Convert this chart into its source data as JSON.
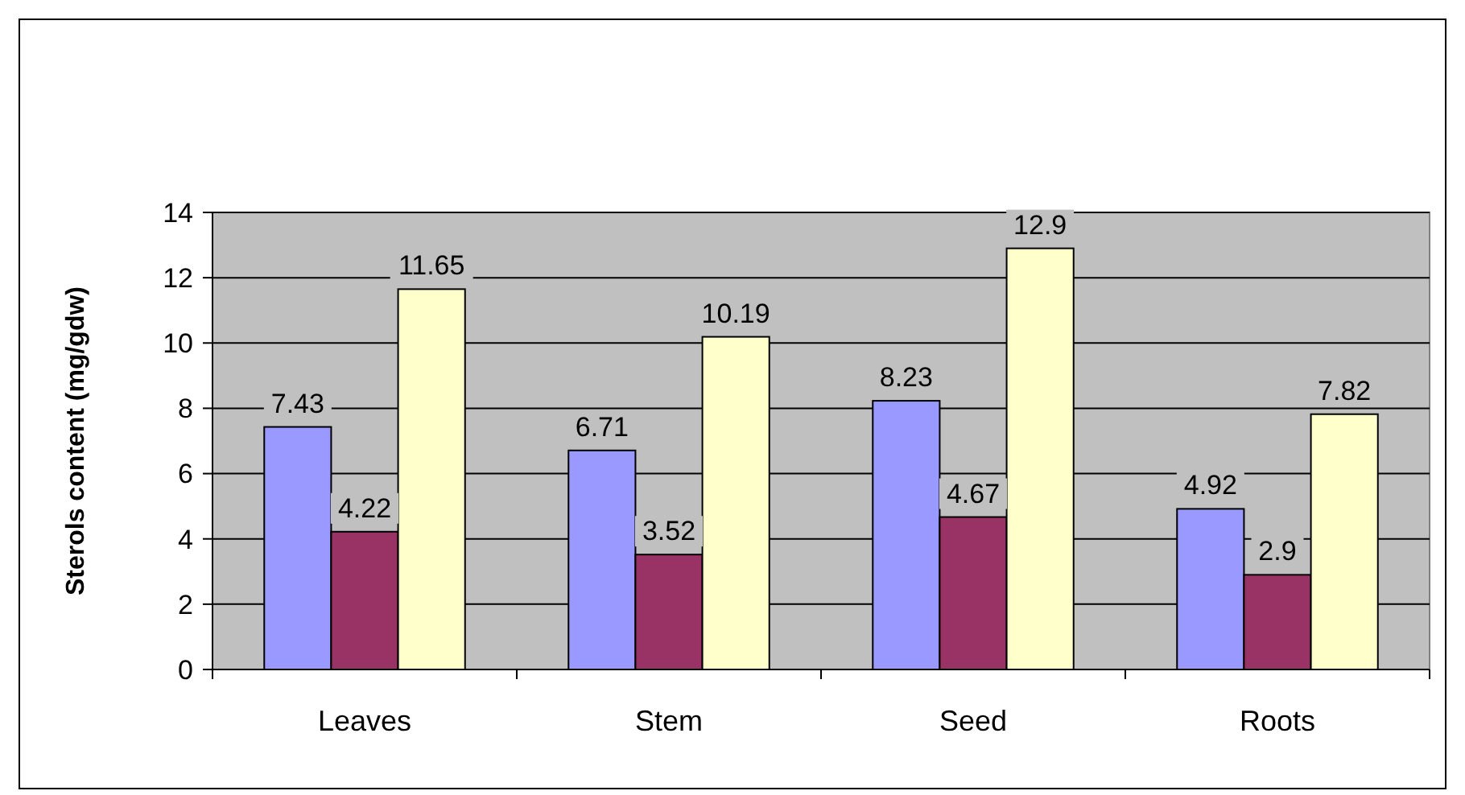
{
  "chart_data": {
    "type": "bar",
    "ylabel": "Sterols content (mg/gdw)",
    "categories": [
      "Leaves",
      "Stem",
      "Seed",
      "Roots"
    ],
    "series": [
      {
        "color": "#9999ff",
        "values": [
          7.43,
          6.71,
          8.23,
          4.92
        ]
      },
      {
        "color": "#993366",
        "values": [
          4.22,
          3.52,
          4.67,
          2.9
        ]
      },
      {
        "color": "#ffffcc",
        "values": [
          11.65,
          10.19,
          12.9,
          7.82
        ]
      }
    ],
    "ylim": [
      0,
      14
    ],
    "yticks": [
      0,
      2,
      4,
      6,
      8,
      10,
      12,
      14
    ],
    "grid": "y",
    "data_labels": true
  }
}
